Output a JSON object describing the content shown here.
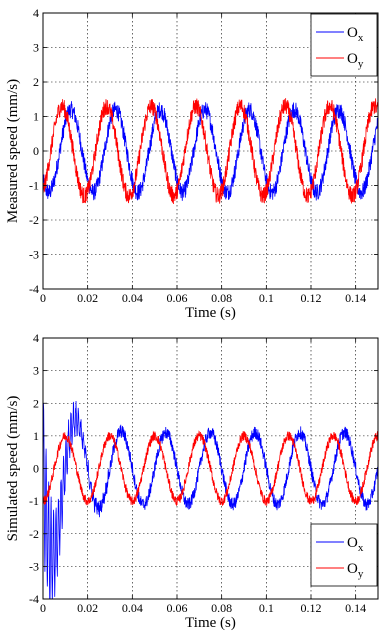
{
  "chart_data": [
    {
      "type": "line",
      "xlabel": "Time (s)",
      "ylabel": "Measured speed (mm/s)",
      "xlim": [
        0,
        0.15
      ],
      "ylim": [
        -4,
        4
      ],
      "xticks": [
        "0",
        "0.02",
        "0.04",
        "0.06",
        "0.08",
        "0.1",
        "0.12",
        "0.14"
      ],
      "yticks": [
        "-4",
        "-3",
        "-2",
        "-1",
        "0",
        "1",
        "2",
        "3",
        "4"
      ],
      "grid": true,
      "legend": "top-right",
      "series": [
        {
          "name": "Ox",
          "label_main": "O",
          "label_sub": "x",
          "color": "#0000ff",
          "frequency_hz": 50,
          "phase_s": 0.0125,
          "peaks_s": [
            0.0125,
            0.0325,
            0.0525,
            0.0725,
            0.0925,
            0.1125,
            0.1325
          ],
          "amplitude": 1.2,
          "noise": 0.25,
          "start_amplitude": 1.2,
          "decay_s": 0
        },
        {
          "name": "Oy",
          "label_main": "O",
          "label_sub": "y",
          "color": "#ff0000",
          "frequency_hz": 50,
          "phase_s": 0.0085,
          "peaks_s": [
            0.0085,
            0.0285,
            0.0485,
            0.0685,
            0.0885,
            0.1085,
            0.1285,
            0.1485
          ],
          "amplitude": 1.3,
          "noise": 0.25,
          "start_amplitude": 1.3,
          "decay_s": 0
        }
      ]
    },
    {
      "type": "line",
      "xlabel": "Time (s)",
      "ylabel": "Simulated speed (mm/s)",
      "xlim": [
        0,
        0.15
      ],
      "ylim": [
        -4,
        4
      ],
      "xticks": [
        "0",
        "0.02",
        "0.04",
        "0.06",
        "0.08",
        "0.1",
        "0.12",
        "0.14"
      ],
      "yticks": [
        "-4",
        "-3",
        "-2",
        "-1",
        "0",
        "1",
        "2",
        "3",
        "4"
      ],
      "grid": true,
      "legend": "bottom-right",
      "series": [
        {
          "name": "Ox",
          "label_main": "O",
          "label_sub": "x",
          "color": "#0000ff",
          "frequency_hz": 50,
          "phase_s": 0.015,
          "peaks_s": [
            0.015,
            0.035,
            0.055,
            0.075,
            0.095,
            0.115,
            0.135
          ],
          "amplitude": 1.1,
          "noise": 0.2,
          "start_amplitude": 3.8,
          "decay_s": 0.008
        },
        {
          "name": "Oy",
          "label_main": "O",
          "label_sub": "y",
          "color": "#ff0000",
          "frequency_hz": 50,
          "phase_s": 0.01,
          "peaks_s": [
            0.01,
            0.03,
            0.05,
            0.07,
            0.09,
            0.11,
            0.13,
            0.15
          ],
          "amplitude": 1.0,
          "noise": 0.15,
          "start_amplitude": 1.0,
          "decay_s": 0
        }
      ]
    }
  ]
}
